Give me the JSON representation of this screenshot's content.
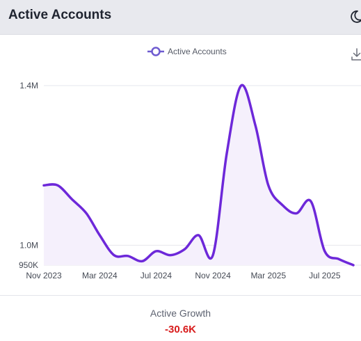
{
  "header": {
    "title": "Active Accounts",
    "theme_icon": "moon-icon"
  },
  "toolbar": {
    "download_icon": "download-icon"
  },
  "footer": {
    "label": "Active Growth",
    "value": "-30.6K",
    "value_color": "#d81b1b"
  },
  "chart_data": {
    "type": "area",
    "title": "",
    "xlabel": "",
    "ylabel": "",
    "legend": {
      "position": "top-center",
      "entries": [
        "Active Accounts"
      ]
    },
    "series": [
      {
        "name": "Active Accounts",
        "color": "#6d28d9",
        "x": [
          "2023-11-01",
          "2023-12-01",
          "2024-01-01",
          "2024-02-01",
          "2024-03-01",
          "2024-04-01",
          "2024-05-01",
          "2024-06-01",
          "2024-07-01",
          "2024-08-01",
          "2024-09-01",
          "2024-10-01",
          "2024-11-01",
          "2024-12-01",
          "2025-01-01",
          "2025-02-01",
          "2025-03-01",
          "2025-04-01",
          "2025-05-01",
          "2025-06-01",
          "2025-07-01",
          "2025-08-01",
          "2025-09-01"
        ],
        "values": [
          1150000,
          1150000,
          1115000,
          1080000,
          1025000,
          975000,
          973000,
          960000,
          985000,
          975000,
          990000,
          1025000,
          975000,
          1230000,
          1400000,
          1300000,
          1150000,
          1100000,
          1080000,
          1110000,
          985000,
          965000,
          950000
        ]
      }
    ],
    "x_tick_labels": [
      "Nov 2023",
      "Mar 2024",
      "Jul 2024",
      "Nov 2024",
      "Mar 2025",
      "Jul 2025"
    ],
    "x_tick_dates": [
      "2023-11-01",
      "2024-03-01",
      "2024-07-01",
      "2024-11-01",
      "2025-03-01",
      "2025-07-01"
    ],
    "y_tick_labels": [
      "950K",
      "1.0M",
      "1.4M"
    ],
    "y_tick_values": [
      950000,
      1000000,
      1400000
    ],
    "ylim": [
      950000,
      1400000
    ],
    "xlim": [
      "2023-11-01",
      "2025-09-01"
    ],
    "grid": "horizontal"
  }
}
